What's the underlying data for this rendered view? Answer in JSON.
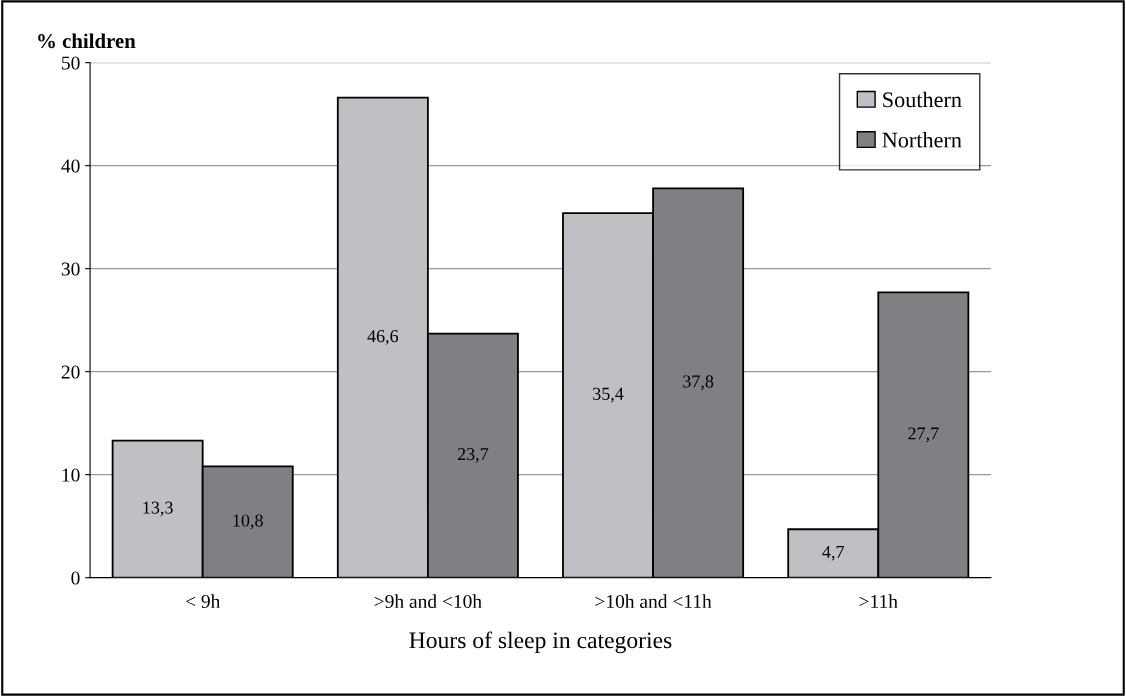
{
  "chart_data": {
    "type": "bar",
    "ylabel": "% children",
    "xlabel": "Hours of sleep in categories",
    "categories": [
      "< 9h",
      ">9h and <10h",
      ">10h and <11h",
      ">11h"
    ],
    "series": [
      {
        "name": "Southern",
        "color": "#c0c0c4",
        "values": [
          13.3,
          46.6,
          35.4,
          4.7
        ],
        "value_labels": [
          "13,3",
          "46,6",
          "35,4",
          "4,7"
        ]
      },
      {
        "name": "Northern",
        "color": "#808084",
        "values": [
          10.8,
          23.7,
          37.8,
          27.7
        ],
        "value_labels": [
          "10,8",
          "23,7",
          "37,8",
          "27,7"
        ]
      }
    ],
    "ylim": [
      0,
      50
    ],
    "yticks": [
      0,
      10,
      20,
      30,
      40,
      50
    ],
    "grid": "y",
    "legend": "top right"
  }
}
